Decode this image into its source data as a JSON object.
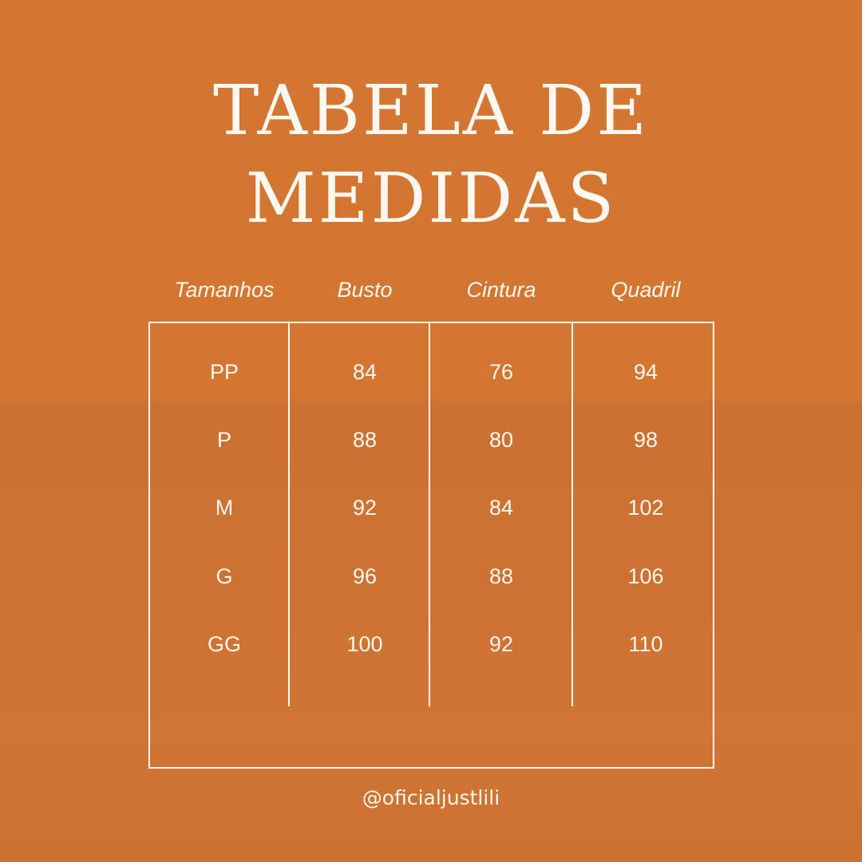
{
  "title": {
    "line1": "TABELA DE",
    "line2": "MEDIDAS"
  },
  "table": {
    "headers": [
      "Tamanhos",
      "Busto",
      "Cintura",
      "Quadril"
    ],
    "rows": [
      [
        "PP",
        "84",
        "76",
        "94"
      ],
      [
        "P",
        "88",
        "80",
        "98"
      ],
      [
        "M",
        "92",
        "84",
        "102"
      ],
      [
        "G",
        "96",
        "88",
        "106"
      ],
      [
        "GG",
        "100",
        "92",
        "110"
      ]
    ]
  },
  "footer": {
    "handle": "@oficialjustlili"
  },
  "colors": {
    "background": "#D27632",
    "text": "#FFF8F0"
  }
}
